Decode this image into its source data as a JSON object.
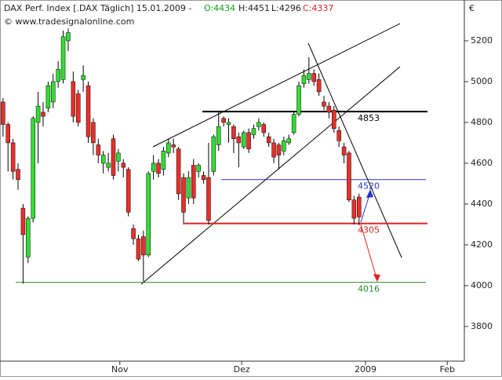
{
  "header": {
    "title": "DAX Perf. Index [.DAX  Täglich] 15.01.2009 -",
    "ohlc": [
      "O:4434",
      "H:4451",
      "L:4296",
      "C:4337"
    ],
    "copyright": "© www.tradesignalonline.com",
    "currency": "€"
  },
  "chart_data": {
    "type": "candlestick",
    "x": [
      0,
      1,
      2,
      3,
      4,
      5,
      6,
      7,
      8,
      9,
      10,
      11,
      12,
      13,
      14,
      15,
      16,
      17,
      18,
      19,
      20,
      21,
      22,
      23,
      24,
      25,
      26,
      27,
      28,
      29,
      30,
      31,
      32,
      33,
      34,
      35,
      36,
      37,
      38,
      39,
      40,
      41,
      42,
      43,
      44,
      45,
      46,
      47,
      48,
      49,
      50,
      51,
      52,
      53,
      54,
      55,
      56,
      57,
      58,
      59,
      60,
      61,
      62,
      63,
      64,
      65,
      66,
      67,
      68,
      69,
      70,
      71
    ],
    "open": [
      4900,
      4790,
      4700,
      4570,
      4380,
      4140,
      4330,
      4800,
      4850,
      4870,
      4900,
      5000,
      5010,
      5200,
      5000,
      4940,
      5010,
      4980,
      4800,
      4690,
      4600,
      4580,
      4720,
      4610,
      4600,
      4570,
      4280,
      4230,
      4240,
      4150,
      4560,
      4600,
      4570,
      4650,
      4690,
      4670,
      4530,
      4430,
      4590,
      4560,
      4540,
      4530,
      4560,
      4690,
      4820,
      4790,
      4780,
      4730,
      4680,
      4750,
      4740,
      4780,
      4790,
      4730,
      4700,
      4690,
      4660,
      4700,
      4750,
      4840,
      4990,
      5010,
      5040,
      5010,
      4900,
      4880,
      4860,
      4760,
      4680,
      4650,
      4420,
      4434
    ],
    "high": [
      4920,
      4800,
      4720,
      4600,
      4400,
      4340,
      4830,
      4950,
      4900,
      5000,
      5040,
      5100,
      5250,
      5260,
      5050,
      4960,
      5080,
      5000,
      4820,
      4720,
      4660,
      4650,
      4740,
      4670,
      4620,
      4580,
      4300,
      4250,
      4270,
      4560,
      4640,
      4620,
      4680,
      4720,
      4720,
      4680,
      4550,
      4560,
      4620,
      4600,
      4560,
      4700,
      4740,
      4850,
      4830,
      4820,
      4790,
      4750,
      4760,
      4770,
      4790,
      4820,
      4800,
      4750,
      4720,
      4700,
      4730,
      4740,
      4850,
      5000,
      5060,
      5120,
      5060,
      5040,
      4930,
      4900,
      4880,
      4780,
      4700,
      4660,
      4440,
      4451
    ],
    "low": [
      4730,
      4560,
      4520,
      4470,
      4010,
      4110,
      4310,
      4600,
      4780,
      4850,
      4870,
      4970,
      4990,
      5150,
      4800,
      4780,
      4950,
      4700,
      4640,
      4600,
      4550,
      4560,
      4520,
      4560,
      4530,
      4340,
      4200,
      4120,
      4020,
      4140,
      4520,
      4530,
      4540,
      4630,
      4650,
      4420,
      4300,
      4400,
      4400,
      4530,
      4500,
      4300,
      4540,
      4660,
      4780,
      4700,
      4650,
      4580,
      4670,
      4650,
      4720,
      4760,
      4730,
      4680,
      4600,
      4570,
      4640,
      4690,
      4740,
      4830,
      4970,
      4990,
      4980,
      4930,
      4860,
      4820,
      4750,
      4680,
      4600,
      4410,
      4300,
      4296
    ],
    "close": [
      4790,
      4700,
      4560,
      4520,
      4250,
      4330,
      4820,
      4880,
      4830,
      4980,
      5000,
      5060,
      5220,
      5240,
      4830,
      4800,
      5030,
      4730,
      4700,
      4640,
      4640,
      4600,
      4540,
      4650,
      4580,
      4360,
      4230,
      4130,
      4150,
      4550,
      4600,
      4550,
      4660,
      4700,
      4680,
      4450,
      4360,
      4530,
      4430,
      4590,
      4520,
      4320,
      4730,
      4780,
      4800,
      4800,
      4720,
      4700,
      4750,
      4670,
      4770,
      4800,
      4750,
      4700,
      4630,
      4640,
      4710,
      4720,
      4840,
      4980,
      5030,
      5040,
      5000,
      4950,
      4880,
      4850,
      4770,
      4710,
      4640,
      4420,
      4330,
      4337
    ],
    "up_color": "#33dd33",
    "down_color": "#e8302a",
    "xlim": [
      -0.6,
      92
    ],
    "xticks": [
      {
        "value": 23.3,
        "label": "Nov"
      },
      {
        "value": 47.6,
        "label": "Dez"
      },
      {
        "value": 72.3,
        "label": "2009"
      },
      {
        "value": 88.6,
        "label": "Feb"
      }
    ],
    "ylim": [
      3630,
      5400
    ],
    "yticks": [
      3800,
      4000,
      4200,
      4400,
      4600,
      4800,
      5000,
      5200
    ],
    "levels": [
      {
        "value": 4853,
        "color": "#000000"
      },
      {
        "value": 4520,
        "color": "#2233cc"
      },
      {
        "value": 4305,
        "color": "#e02020"
      },
      {
        "value": 4016,
        "color": "#2a8a2a"
      }
    ]
  }
}
